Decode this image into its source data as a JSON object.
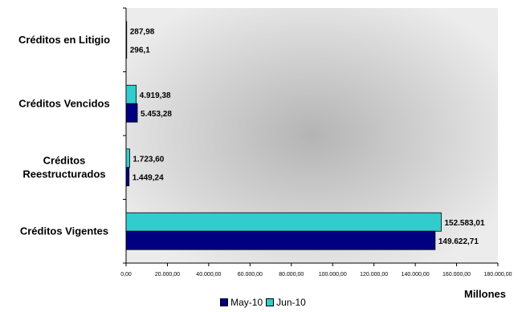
{
  "chart_data": {
    "type": "bar",
    "orientation": "horizontal",
    "categories": [
      "Créditos en Litigio",
      "Créditos Vencidos",
      "Créditos Reestructurados",
      "Créditos Vigentes"
    ],
    "category_label_lines": [
      [
        "Créditos en Litigio"
      ],
      [
        "Créditos Vencidos"
      ],
      [
        "Créditos",
        "Reestructurados"
      ],
      [
        "Créditos Vigentes"
      ]
    ],
    "series": [
      {
        "name": "Jun-10",
        "color": "#33cccc",
        "values": [
          287.98,
          4919.38,
          1723.6,
          152583.01
        ],
        "labels": [
          "287,98",
          "4.919,38",
          "1.723,60",
          "152.583,01"
        ]
      },
      {
        "name": "May-10",
        "color": "#000080",
        "values": [
          296.1,
          5453.28,
          1449.24,
          149622.71
        ],
        "labels": [
          "296,1",
          "5.453,28",
          "1.449,24",
          "149.622,71"
        ]
      }
    ],
    "xlim": [
      0,
      180000
    ],
    "xticks": [
      0,
      20000,
      40000,
      60000,
      80000,
      100000,
      120000,
      140000,
      160000,
      180000
    ],
    "xtick_labels": [
      "0,00",
      "20.000,00",
      "40.000,00",
      "60.000,00",
      "80.000,00",
      "100.000,00",
      "120.000,00",
      "140.000,00",
      "160.000,00",
      "180.000,00"
    ],
    "xlabel": "Millones",
    "legend": [
      {
        "name": "May-10",
        "color": "#000080"
      },
      {
        "name": "Jun-10",
        "color": "#33cccc"
      }
    ],
    "legend_position": "bottom",
    "grid": false
  }
}
